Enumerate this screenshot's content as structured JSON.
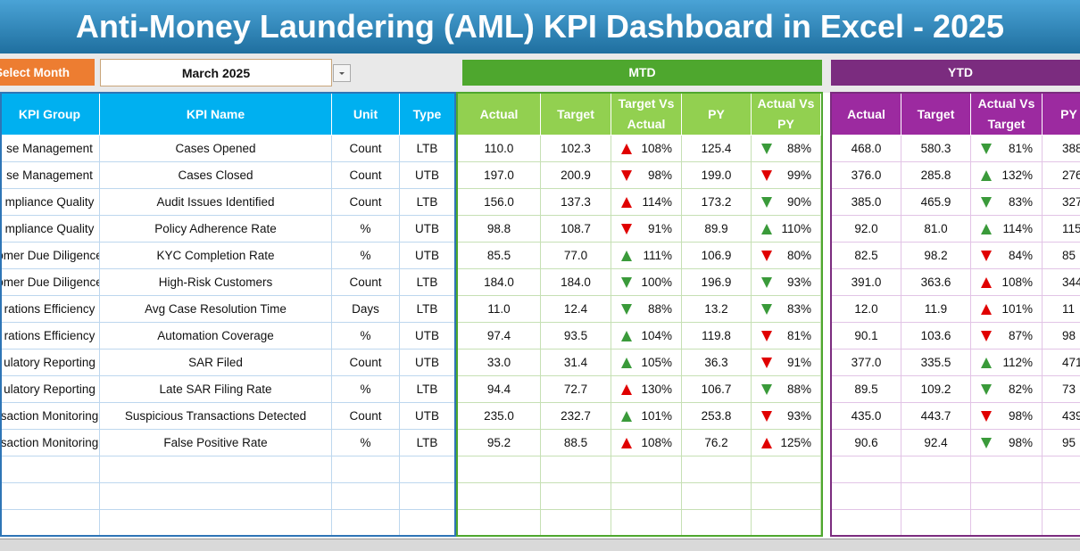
{
  "header": {
    "title": "Anti-Money Laundering (AML) KPI Dashboard in Excel - 2025"
  },
  "month_selector": {
    "label": "Select Month",
    "value": "March 2025"
  },
  "sections": {
    "mtd": "MTD",
    "ytd": "YTD"
  },
  "table": {
    "kpi_columns": [
      "KPI Group",
      "KPI Name",
      "Unit",
      "Type"
    ],
    "mtd_columns": [
      "Actual",
      "Target",
      "Target Vs Actual",
      "PY",
      "Actual Vs PY"
    ],
    "ytd_columns": [
      "Actual",
      "Target",
      "Actual Vs Target",
      "PY"
    ],
    "rows": [
      {
        "kpi": [
          "se Management",
          "Cases Opened",
          "Count",
          "LTB"
        ],
        "mtd": [
          "110.0",
          "102.3",
          {
            "arrow": "up",
            "color": "#e00000",
            "text": "108%"
          },
          "125.4",
          {
            "arrow": "down",
            "color": "#3a9a3a",
            "text": "88%"
          }
        ],
        "ytd": [
          "468.0",
          "580.3",
          {
            "arrow": "down",
            "color": "#3a9a3a",
            "text": "81%"
          },
          "388"
        ]
      },
      {
        "kpi": [
          "se Management",
          "Cases Closed",
          "Count",
          "UTB"
        ],
        "mtd": [
          "197.0",
          "200.9",
          {
            "arrow": "down",
            "color": "#e00000",
            "text": "98%"
          },
          "199.0",
          {
            "arrow": "down",
            "color": "#e00000",
            "text": "99%"
          }
        ],
        "ytd": [
          "376.0",
          "285.8",
          {
            "arrow": "up",
            "color": "#3a9a3a",
            "text": "132%"
          },
          "276"
        ]
      },
      {
        "kpi": [
          "mpliance Quality",
          "Audit Issues Identified",
          "Count",
          "LTB"
        ],
        "mtd": [
          "156.0",
          "137.3",
          {
            "arrow": "up",
            "color": "#e00000",
            "text": "114%"
          },
          "173.2",
          {
            "arrow": "down",
            "color": "#3a9a3a",
            "text": "90%"
          }
        ],
        "ytd": [
          "385.0",
          "465.9",
          {
            "arrow": "down",
            "color": "#3a9a3a",
            "text": "83%"
          },
          "327"
        ]
      },
      {
        "kpi": [
          "mpliance Quality",
          "Policy Adherence Rate",
          "%",
          "UTB"
        ],
        "mtd": [
          "98.8",
          "108.7",
          {
            "arrow": "down",
            "color": "#e00000",
            "text": "91%"
          },
          "89.9",
          {
            "arrow": "up",
            "color": "#3a9a3a",
            "text": "110%"
          }
        ],
        "ytd": [
          "92.0",
          "81.0",
          {
            "arrow": "up",
            "color": "#3a9a3a",
            "text": "114%"
          },
          "115"
        ]
      },
      {
        "kpi": [
          "omer Due Diligence",
          "KYC Completion Rate",
          "%",
          "UTB"
        ],
        "mtd": [
          "85.5",
          "77.0",
          {
            "arrow": "up",
            "color": "#3a9a3a",
            "text": "111%"
          },
          "106.9",
          {
            "arrow": "down",
            "color": "#e00000",
            "text": "80%"
          }
        ],
        "ytd": [
          "82.5",
          "98.2",
          {
            "arrow": "down",
            "color": "#e00000",
            "text": "84%"
          },
          "85"
        ]
      },
      {
        "kpi": [
          "omer Due Diligence",
          "High-Risk Customers",
          "Count",
          "LTB"
        ],
        "mtd": [
          "184.0",
          "184.0",
          {
            "arrow": "down",
            "color": "#3a9a3a",
            "text": "100%"
          },
          "196.9",
          {
            "arrow": "down",
            "color": "#3a9a3a",
            "text": "93%"
          }
        ],
        "ytd": [
          "391.0",
          "363.6",
          {
            "arrow": "up",
            "color": "#e00000",
            "text": "108%"
          },
          "344"
        ]
      },
      {
        "kpi": [
          "rations Efficiency",
          "Avg Case Resolution Time",
          "Days",
          "LTB"
        ],
        "mtd": [
          "11.0",
          "12.4",
          {
            "arrow": "down",
            "color": "#3a9a3a",
            "text": "88%"
          },
          "13.2",
          {
            "arrow": "down",
            "color": "#3a9a3a",
            "text": "83%"
          }
        ],
        "ytd": [
          "12.0",
          "11.9",
          {
            "arrow": "up",
            "color": "#e00000",
            "text": "101%"
          },
          "11"
        ]
      },
      {
        "kpi": [
          "rations Efficiency",
          "Automation Coverage",
          "%",
          "UTB"
        ],
        "mtd": [
          "97.4",
          "93.5",
          {
            "arrow": "up",
            "color": "#3a9a3a",
            "text": "104%"
          },
          "119.8",
          {
            "arrow": "down",
            "color": "#e00000",
            "text": "81%"
          }
        ],
        "ytd": [
          "90.1",
          "103.6",
          {
            "arrow": "down",
            "color": "#e00000",
            "text": "87%"
          },
          "98"
        ]
      },
      {
        "kpi": [
          "ulatory Reporting",
          "SAR Filed",
          "Count",
          "UTB"
        ],
        "mtd": [
          "33.0",
          "31.4",
          {
            "arrow": "up",
            "color": "#3a9a3a",
            "text": "105%"
          },
          "36.3",
          {
            "arrow": "down",
            "color": "#e00000",
            "text": "91%"
          }
        ],
        "ytd": [
          "377.0",
          "335.5",
          {
            "arrow": "up",
            "color": "#3a9a3a",
            "text": "112%"
          },
          "471"
        ]
      },
      {
        "kpi": [
          "ulatory Reporting",
          "Late SAR Filing Rate",
          "%",
          "LTB"
        ],
        "mtd": [
          "94.4",
          "72.7",
          {
            "arrow": "up",
            "color": "#e00000",
            "text": "130%"
          },
          "106.7",
          {
            "arrow": "down",
            "color": "#3a9a3a",
            "text": "88%"
          }
        ],
        "ytd": [
          "89.5",
          "109.2",
          {
            "arrow": "down",
            "color": "#3a9a3a",
            "text": "82%"
          },
          "73"
        ]
      },
      {
        "kpi": [
          "saction Monitoring",
          "Suspicious Transactions Detected",
          "Count",
          "UTB"
        ],
        "mtd": [
          "235.0",
          "232.7",
          {
            "arrow": "up",
            "color": "#3a9a3a",
            "text": "101%"
          },
          "253.8",
          {
            "arrow": "down",
            "color": "#e00000",
            "text": "93%"
          }
        ],
        "ytd": [
          "435.0",
          "443.7",
          {
            "arrow": "down",
            "color": "#e00000",
            "text": "98%"
          },
          "439"
        ]
      },
      {
        "kpi": [
          "saction Monitoring",
          "False Positive Rate",
          "%",
          "LTB"
        ],
        "mtd": [
          "95.2",
          "88.5",
          {
            "arrow": "up",
            "color": "#e00000",
            "text": "108%"
          },
          "76.2",
          {
            "arrow": "up",
            "color": "#e00000",
            "text": "125%"
          }
        ],
        "ytd": [
          "90.6",
          "92.4",
          {
            "arrow": "down",
            "color": "#3a9a3a",
            "text": "98%"
          },
          "95"
        ]
      }
    ]
  }
}
